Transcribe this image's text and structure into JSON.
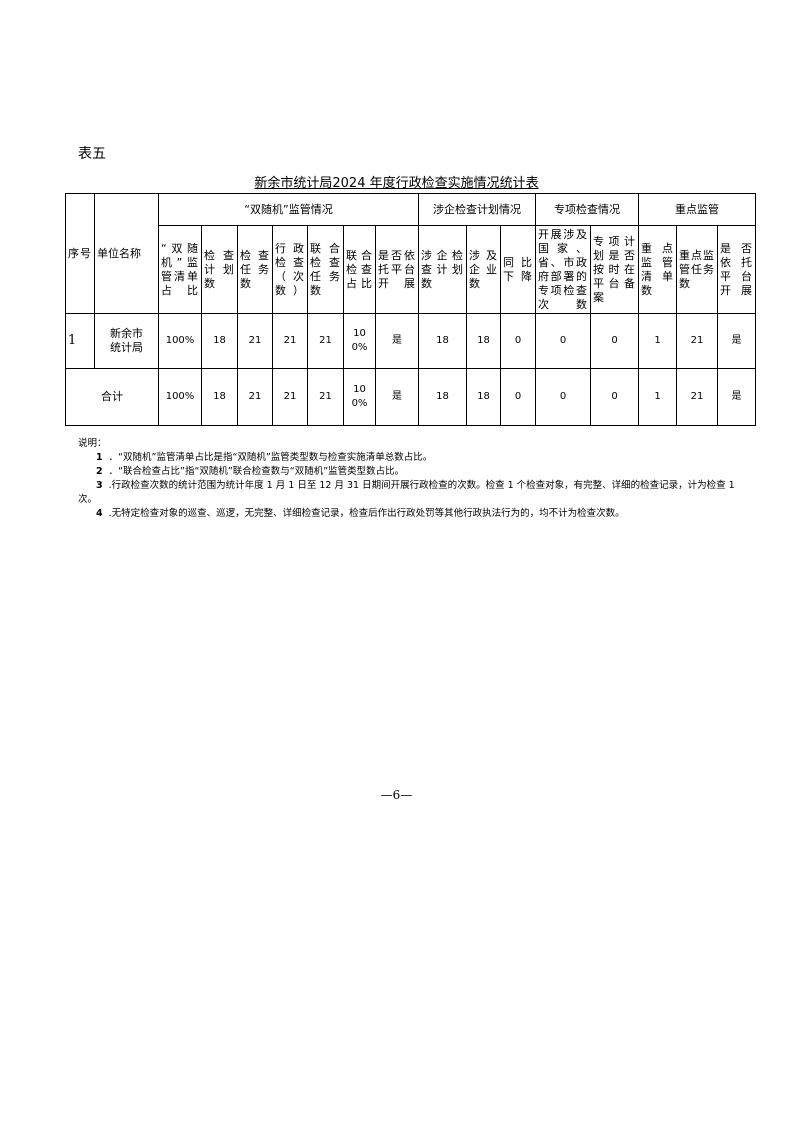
{
  "table_label": "表五",
  "title": "新余市统计局2024 年度行政检查实施情况统计表",
  "groups": [
    "“双随机”监管情况",
    "涉企检查计划情况",
    "专项检查情况",
    "重点监管"
  ],
  "headers": {
    "seq": "序号",
    "unit": "单位名称",
    "cols": [
      "“双随机”监管清单占比",
      "检查计划数",
      "检查任务数",
      "行政检查（次数）",
      "联合检查任务数",
      "联合检查占比",
      "是否依托平台开展",
      "涉企检查计划数",
      "涉及企业数",
      "同比下降",
      "开展涉及国家、省、市政府部署的专项检查次数",
      "专项计划是否按时在平台备案",
      "重点监管清单数",
      "重点监管任务数",
      "是否依托平台开展"
    ]
  },
  "rows": [
    {
      "seq": "1",
      "unit": "新余市统计局",
      "values": [
        "100%",
        "18",
        "21",
        "21",
        "21",
        "100%",
        "是",
        "18",
        "18",
        "0",
        "0",
        "0",
        "1",
        "21",
        "是"
      ]
    }
  ],
  "total": {
    "label": "合计",
    "values": [
      "100%",
      "18",
      "21",
      "21",
      "21",
      "100%",
      "是",
      "18",
      "18",
      "0",
      "0",
      "0",
      "1",
      "21",
      "是"
    ]
  },
  "notes": {
    "heading": "说明：",
    "items": [
      {
        "n": "1",
        "text": "．“双随机”监管清单占比是指“双随机”监管类型数与检查实施清单总数占比。"
      },
      {
        "n": "2",
        "text": "．“联合检查占比”指“双随机”联合检查数与“双随机”监管类型数占比。"
      },
      {
        "n": "3",
        "text": ".行政检查次数的统计范围为统计年度 1 月 1 日至 12 月 31 日期间开展行政检查的次数。检查 1 个检查对象，有完整、详细的检查记录，计为检查 1 次。"
      },
      {
        "n": "4",
        "text": ".无特定检查对象的巡查、巡逻，无完整、详细检查记录，检查后作出行政处罚等其他行政执法行为的，均不计为检查次数。"
      }
    ]
  },
  "page_number": "—6—"
}
